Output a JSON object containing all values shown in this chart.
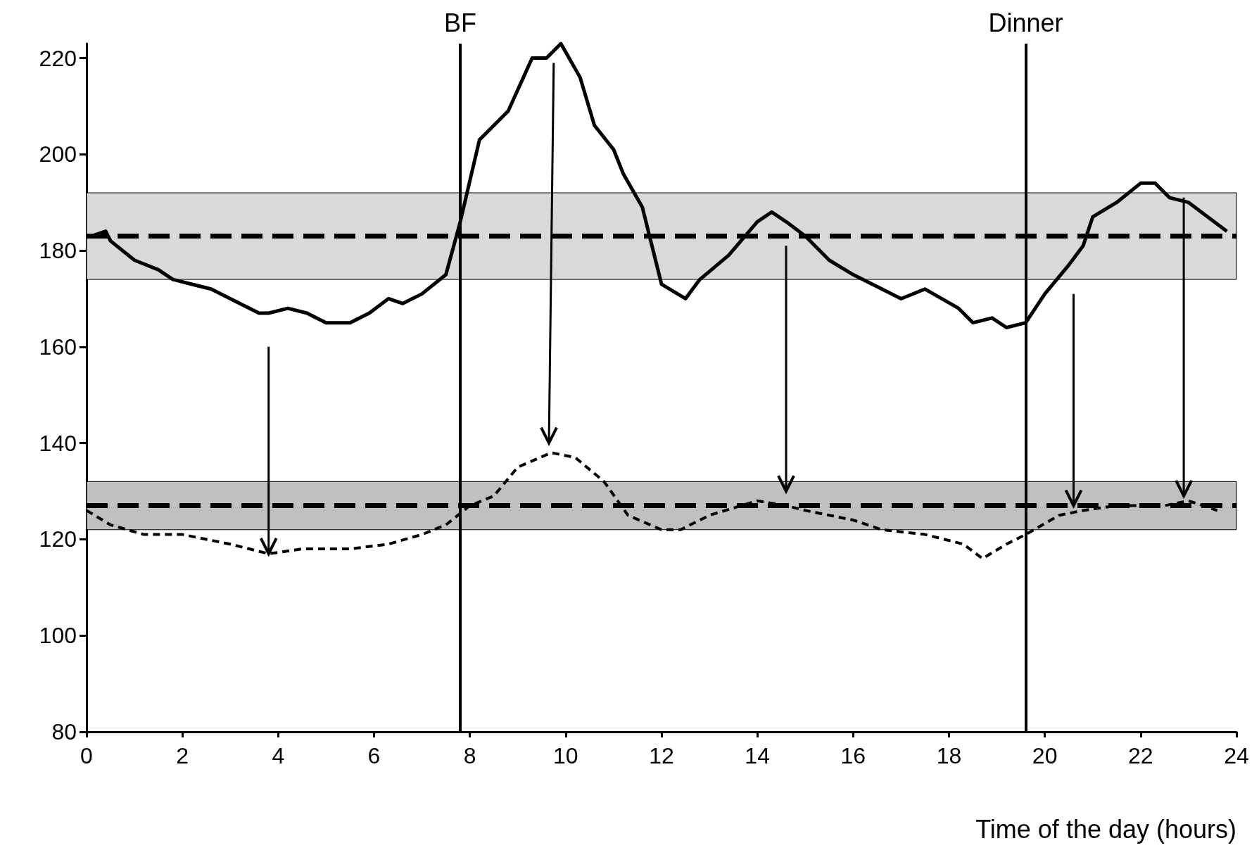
{
  "chart_data": {
    "type": "line",
    "xlabel": "Time of the day (hours)",
    "xlim": [
      0,
      24
    ],
    "xticks": [
      0,
      2,
      4,
      6,
      8,
      10,
      12,
      14,
      16,
      18,
      20,
      22,
      24
    ],
    "ylim": [
      80,
      223
    ],
    "yticks": [
      80,
      100,
      120,
      140,
      160,
      180,
      200,
      220
    ],
    "grid": false,
    "marker": "none",
    "series": [
      {
        "color": "#000000",
        "line_style": "solid",
        "x": [
          0.1,
          0.4,
          0.5,
          1,
          1.5,
          1.8,
          2.2,
          2.6,
          3,
          3.6,
          3.8,
          4.2,
          4.6,
          5,
          5.5,
          5.9,
          6.3,
          6.6,
          7,
          7.5,
          7.8,
          8.2,
          8.8,
          9.3,
          9.6,
          9.9,
          10.3,
          10.6,
          11,
          11.2,
          11.6,
          12,
          12.5,
          12.8,
          13.4,
          14,
          14.3,
          14.6,
          15,
          15.5,
          16,
          16.6,
          17,
          17.5,
          18.2,
          18.5,
          18.9,
          19.2,
          19.6,
          20,
          20.5,
          20.8,
          21,
          21.5,
          22,
          22.3,
          22.6,
          23,
          23.4,
          23.8
        ],
        "values": [
          183,
          184,
          182,
          178,
          176,
          174,
          173,
          172,
          170,
          167,
          167,
          168,
          167,
          165,
          165,
          167,
          170,
          169,
          171,
          175,
          186,
          203,
          209,
          220,
          220,
          223,
          216,
          206,
          201,
          196,
          189,
          173,
          170,
          174,
          179,
          186,
          188,
          186,
          183,
          178,
          175,
          172,
          170,
          172,
          168,
          165,
          166,
          164,
          165,
          171,
          177,
          181,
          187,
          190,
          194,
          194,
          191,
          190,
          187,
          184
        ]
      },
      {
        "color": "#000000",
        "line_style": "dashed",
        "x": [
          0,
          0.5,
          1.2,
          2,
          3,
          3.8,
          4.5,
          5.5,
          6.3,
          7,
          7.5,
          8,
          8.5,
          9,
          9.7,
          10.2,
          10.8,
          11.3,
          12,
          12.4,
          13,
          14,
          14.6,
          15,
          16,
          16.6,
          17.5,
          18.3,
          18.7,
          19.2,
          19.6,
          20.3,
          20.8,
          21.5,
          22.5,
          23,
          23.6
        ],
        "values": [
          126,
          123,
          121,
          121,
          119,
          117,
          118,
          118,
          119,
          121,
          123,
          127,
          129,
          135,
          138,
          137,
          132,
          125,
          122,
          122,
          125,
          128,
          127,
          126,
          124,
          122,
          121,
          119,
          116,
          119,
          121,
          125,
          126,
          127,
          127,
          128,
          126
        ]
      }
    ],
    "ref_lines": [
      {
        "axis": "y",
        "value": 183,
        "color": "#000000",
        "line_style": "dashed"
      },
      {
        "axis": "y",
        "value": 127,
        "color": "#000000",
        "line_style": "dashed"
      },
      {
        "axis": "x",
        "value": 7.8,
        "label": "BF",
        "color": "#000000",
        "line_style": "solid"
      },
      {
        "axis": "x",
        "value": 19.6,
        "label": "Dinner",
        "color": "#000000",
        "line_style": "solid"
      }
    ],
    "bands": [
      {
        "axis": "y",
        "from": 174,
        "to": 192,
        "color": "#d9d9d9"
      },
      {
        "axis": "y",
        "from": 122,
        "to": 132,
        "color": "#c0c0c0"
      }
    ]
  }
}
